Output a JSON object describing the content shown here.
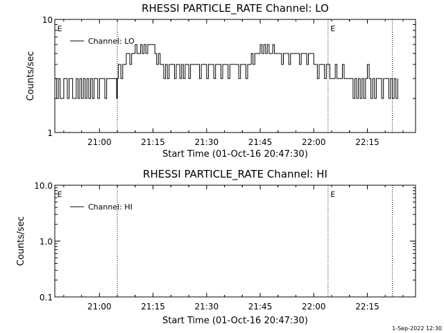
{
  "chart_data": [
    {
      "type": "line",
      "title": "RHESSI PARTICLE_RATE Channel: LO",
      "xlabel": "Start Time (01-Oct-16 20:47:30)",
      "ylabel": "Counts/sec",
      "y_scale": "log",
      "ylim": [
        1,
        10
      ],
      "y_tick_labels": [
        "1",
        "10"
      ],
      "xlim_minutes_after_start": [
        0,
        101
      ],
      "x_tick_labels": [
        "21:00",
        "21:15",
        "21:30",
        "21:45",
        "22:00",
        "22:15"
      ],
      "x_tick_minutes_after_start": [
        12.5,
        27.5,
        42.5,
        57.5,
        72.5,
        87.5
      ],
      "legend": {
        "entries": [
          "Channel: LO"
        ],
        "placement": "top-left"
      },
      "event_lines_minutes_after_start": [
        17.5,
        76.5,
        94.5
      ],
      "event_markers": [
        {
          "text": "E",
          "minute": 0.5
        },
        {
          "text": "E",
          "minute": 77
        }
      ],
      "series": [
        {
          "name": "Channel: LO",
          "note": "staircase count-rate trace",
          "points": [
            [
              0.0,
              3
            ],
            [
              0.5,
              2
            ],
            [
              1.0,
              3
            ],
            [
              1.5,
              2
            ],
            [
              2.5,
              3
            ],
            [
              3.5,
              2
            ],
            [
              4.0,
              3
            ],
            [
              4.5,
              3
            ],
            [
              5.0,
              2
            ],
            [
              6.0,
              3
            ],
            [
              6.5,
              2
            ],
            [
              7.0,
              3
            ],
            [
              7.5,
              2
            ],
            [
              8.0,
              3
            ],
            [
              8.5,
              2
            ],
            [
              9.0,
              3
            ],
            [
              9.5,
              2
            ],
            [
              10.0,
              3
            ],
            [
              10.5,
              2
            ],
            [
              11.0,
              3
            ],
            [
              11.5,
              3
            ],
            [
              12.0,
              2
            ],
            [
              12.5,
              3
            ],
            [
              13.5,
              3
            ],
            [
              14.0,
              2
            ],
            [
              14.5,
              3
            ],
            [
              17.0,
              3
            ],
            [
              17.3,
              2
            ],
            [
              17.5,
              3
            ],
            [
              17.8,
              4
            ],
            [
              18.5,
              3
            ],
            [
              19.0,
              4
            ],
            [
              20.0,
              5
            ],
            [
              21.0,
              4
            ],
            [
              21.5,
              5
            ],
            [
              22.0,
              5
            ],
            [
              22.5,
              6
            ],
            [
              23.0,
              5
            ],
            [
              24.0,
              6
            ],
            [
              24.5,
              5
            ],
            [
              25.0,
              6
            ],
            [
              25.5,
              5
            ],
            [
              26.0,
              6
            ],
            [
              27.5,
              6
            ],
            [
              28.0,
              5
            ],
            [
              28.5,
              4
            ],
            [
              29.0,
              5
            ],
            [
              29.5,
              4
            ],
            [
              30.0,
              4
            ],
            [
              30.5,
              3
            ],
            [
              31.0,
              4
            ],
            [
              31.5,
              3
            ],
            [
              32.0,
              4
            ],
            [
              33.0,
              4
            ],
            [
              33.5,
              3
            ],
            [
              34.0,
              4
            ],
            [
              35.0,
              3
            ],
            [
              35.5,
              4
            ],
            [
              36.0,
              3
            ],
            [
              36.5,
              4
            ],
            [
              37.0,
              4
            ],
            [
              37.5,
              3
            ],
            [
              38.0,
              4
            ],
            [
              40.0,
              4
            ],
            [
              40.5,
              3
            ],
            [
              41.0,
              4
            ],
            [
              42.0,
              4
            ],
            [
              42.5,
              3
            ],
            [
              43.0,
              4
            ],
            [
              44.0,
              4
            ],
            [
              44.5,
              3
            ],
            [
              45.0,
              4
            ],
            [
              46.0,
              4
            ],
            [
              46.5,
              3
            ],
            [
              47.0,
              4
            ],
            [
              48.0,
              4
            ],
            [
              48.5,
              3
            ],
            [
              49.0,
              4
            ],
            [
              51.0,
              4
            ],
            [
              51.5,
              3
            ],
            [
              52.0,
              4
            ],
            [
              53.0,
              4
            ],
            [
              53.5,
              3
            ],
            [
              54.0,
              4
            ],
            [
              54.5,
              4
            ],
            [
              55.0,
              5
            ],
            [
              55.5,
              4
            ],
            [
              56.0,
              5
            ],
            [
              57.0,
              5
            ],
            [
              57.5,
              6
            ],
            [
              58.0,
              5
            ],
            [
              58.5,
              6
            ],
            [
              59.0,
              5
            ],
            [
              59.5,
              6
            ],
            [
              60.0,
              5
            ],
            [
              61.0,
              6
            ],
            [
              61.5,
              5
            ],
            [
              62.0,
              5
            ],
            [
              63.0,
              5
            ],
            [
              63.5,
              4
            ],
            [
              64.0,
              5
            ],
            [
              65.0,
              5
            ],
            [
              65.5,
              4
            ],
            [
              66.0,
              5
            ],
            [
              68.0,
              5
            ],
            [
              68.5,
              4
            ],
            [
              69.0,
              5
            ],
            [
              70.0,
              5
            ],
            [
              70.5,
              4
            ],
            [
              71.0,
              5
            ],
            [
              72.0,
              5
            ],
            [
              72.5,
              4
            ],
            [
              73.0,
              4
            ],
            [
              73.5,
              3
            ],
            [
              74.0,
              4
            ],
            [
              75.0,
              4
            ],
            [
              75.5,
              3
            ],
            [
              76.0,
              4
            ],
            [
              76.5,
              4
            ],
            [
              77.0,
              3
            ],
            [
              78.0,
              3
            ],
            [
              78.5,
              4
            ],
            [
              79.0,
              3
            ],
            [
              80.0,
              3
            ],
            [
              80.5,
              4
            ],
            [
              81.0,
              3
            ],
            [
              81.5,
              3
            ],
            [
              82.0,
              3
            ],
            [
              83.0,
              3
            ],
            [
              83.5,
              2
            ],
            [
              84.0,
              3
            ],
            [
              84.5,
              2
            ],
            [
              85.0,
              3
            ],
            [
              85.5,
              2
            ],
            [
              86.0,
              3
            ],
            [
              86.5,
              2
            ],
            [
              87.0,
              3
            ],
            [
              87.5,
              4
            ],
            [
              88.0,
              3
            ],
            [
              88.5,
              2
            ],
            [
              89.0,
              3
            ],
            [
              89.5,
              2
            ],
            [
              90.0,
              3
            ],
            [
              91.0,
              3
            ],
            [
              91.5,
              2
            ],
            [
              92.0,
              3
            ],
            [
              93.0,
              3
            ],
            [
              93.5,
              2
            ],
            [
              94.0,
              3
            ],
            [
              94.5,
              2
            ],
            [
              95.0,
              3
            ],
            [
              95.5,
              2
            ],
            [
              96.0,
              3
            ]
          ]
        }
      ]
    },
    {
      "type": "line",
      "title": "RHESSI PARTICLE_RATE Channel: HI",
      "xlabel": "Start Time (01-Oct-16 20:47:30)",
      "ylabel": "Counts/sec",
      "y_scale": "log",
      "ylim": [
        0.1,
        10
      ],
      "y_tick_labels": [
        "0.1",
        "1.0",
        "10.0"
      ],
      "xlim_minutes_after_start": [
        0,
        101
      ],
      "x_tick_labels": [
        "21:00",
        "21:15",
        "21:30",
        "21:45",
        "22:00",
        "22:15"
      ],
      "x_tick_minutes_after_start": [
        12.5,
        27.5,
        42.5,
        57.5,
        72.5,
        87.5
      ],
      "legend": {
        "entries": [
          "Channel: HI"
        ],
        "placement": "top-left"
      },
      "event_lines_minutes_after_start": [
        17.5,
        76.5,
        94.5
      ],
      "event_markers": [
        {
          "text": "E",
          "minute": 0.5
        },
        {
          "text": "E",
          "minute": 77
        }
      ],
      "series": [
        {
          "name": "Channel: HI",
          "points": []
        }
      ]
    }
  ],
  "footer": {
    "timestamp": "1-Sep-2022 12:30"
  }
}
